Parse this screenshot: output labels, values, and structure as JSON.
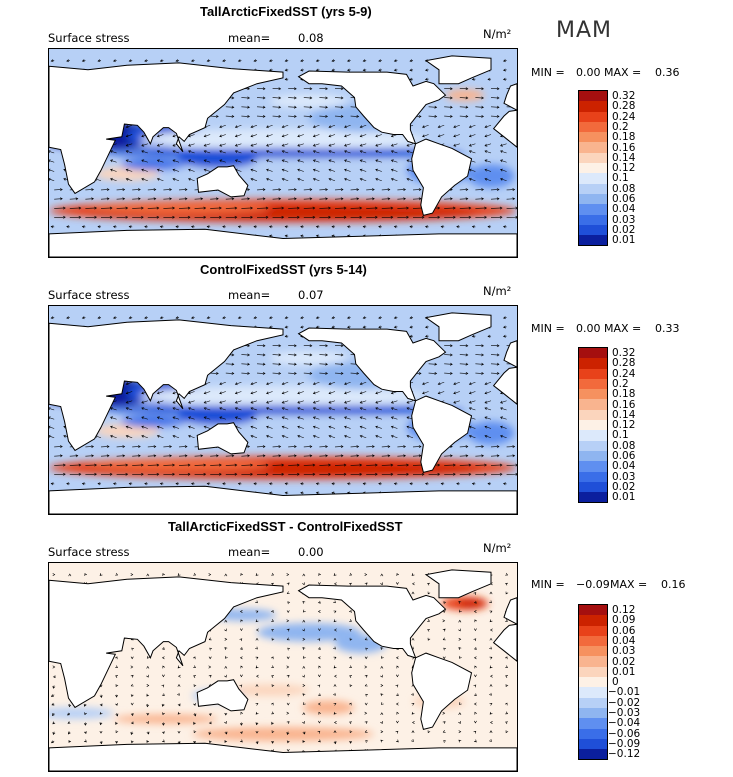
{
  "season": "MAM",
  "panels": [
    {
      "title": "TallArcticFixedSST (yrs 5-9)",
      "variable": "Surface stress",
      "mean_label": "mean=",
      "mean_value": "0.08",
      "units": "N/m²",
      "min_label": "MIN =",
      "min_value": "0.00",
      "max_label": "MAX =",
      "max_value": "0.36",
      "levels": [
        "0.32",
        "0.28",
        "0.24",
        "0.2",
        "0.18",
        "0.16",
        "0.14",
        "0.12",
        "0.1",
        "0.08",
        "0.06",
        "0.04",
        "0.03",
        "0.02",
        "0.01"
      ]
    },
    {
      "title": "ControlFixedSST (yrs 5-14)",
      "variable": "Surface stress",
      "mean_label": "mean=",
      "mean_value": "0.07",
      "units": "N/m²",
      "min_label": "MIN =",
      "min_value": "0.00",
      "max_label": "MAX =",
      "max_value": "0.33",
      "levels": [
        "0.32",
        "0.28",
        "0.24",
        "0.2",
        "0.18",
        "0.16",
        "0.14",
        "0.12",
        "0.1",
        "0.08",
        "0.06",
        "0.04",
        "0.03",
        "0.02",
        "0.01"
      ]
    },
    {
      "title": "TallArcticFixedSST - ControlFixedSST",
      "variable": "Surface stress",
      "mean_label": "mean=",
      "mean_value": "0.00",
      "units": "N/m²",
      "min_label": "MIN =",
      "min_value": "−0.09",
      "max_label": "MAX =",
      "max_value": "0.16",
      "levels": [
        "0.12",
        "0.09",
        "0.06",
        "0.04",
        "0.03",
        "0.02",
        "0.01",
        "0",
        "−0.01",
        "−0.02",
        "−0.03",
        "−0.04",
        "−0.06",
        "−0.09",
        "−0.12"
      ]
    }
  ],
  "colors": {
    "colorbar_top_to_bottom": [
      "#a50f0f",
      "#cc2200",
      "#e8421a",
      "#f26a3c",
      "#f6915f",
      "#f9b48f",
      "#fbd5bd",
      "#fdf1e6",
      "#dce9fb",
      "#b7d0f6",
      "#8fb5f0",
      "#5f8ff0",
      "#3a6ee8",
      "#1f4fd8",
      "#0b1f9e"
    ],
    "land": "#ffffff",
    "coast": "#000000",
    "vectors": "#000000"
  },
  "chart_data": [
    {
      "type": "heatmap",
      "title": "TallArcticFixedSST (yrs 5-9)",
      "field": "Surface stress",
      "units": "N/m²",
      "season": "MAM",
      "mean": 0.08,
      "min": 0.0,
      "max": 0.36,
      "contour_levels": [
        0.01,
        0.02,
        0.03,
        0.04,
        0.06,
        0.08,
        0.1,
        0.12,
        0.14,
        0.16,
        0.18,
        0.2,
        0.24,
        0.28,
        0.32
      ],
      "overlay": "wind stress vectors",
      "projection": "global lat-lon, 0-360E",
      "grid": false
    },
    {
      "type": "heatmap",
      "title": "ControlFixedSST (yrs 5-14)",
      "field": "Surface stress",
      "units": "N/m²",
      "season": "MAM",
      "mean": 0.07,
      "min": 0.0,
      "max": 0.33,
      "contour_levels": [
        0.01,
        0.02,
        0.03,
        0.04,
        0.06,
        0.08,
        0.1,
        0.12,
        0.14,
        0.16,
        0.18,
        0.2,
        0.24,
        0.28,
        0.32
      ],
      "overlay": "wind stress vectors",
      "projection": "global lat-lon, 0-360E",
      "grid": false
    },
    {
      "type": "heatmap",
      "title": "TallArcticFixedSST - ControlFixedSST",
      "field": "Surface stress",
      "units": "N/m²",
      "season": "MAM",
      "mean": 0.0,
      "min": -0.09,
      "max": 0.16,
      "contour_levels": [
        -0.12,
        -0.09,
        -0.06,
        -0.04,
        -0.03,
        -0.02,
        -0.01,
        0,
        0.01,
        0.02,
        0.03,
        0.04,
        0.06,
        0.09,
        0.12
      ],
      "overlay": "wind stress difference vectors",
      "projection": "global lat-lon, 0-360E",
      "grid": false
    }
  ]
}
